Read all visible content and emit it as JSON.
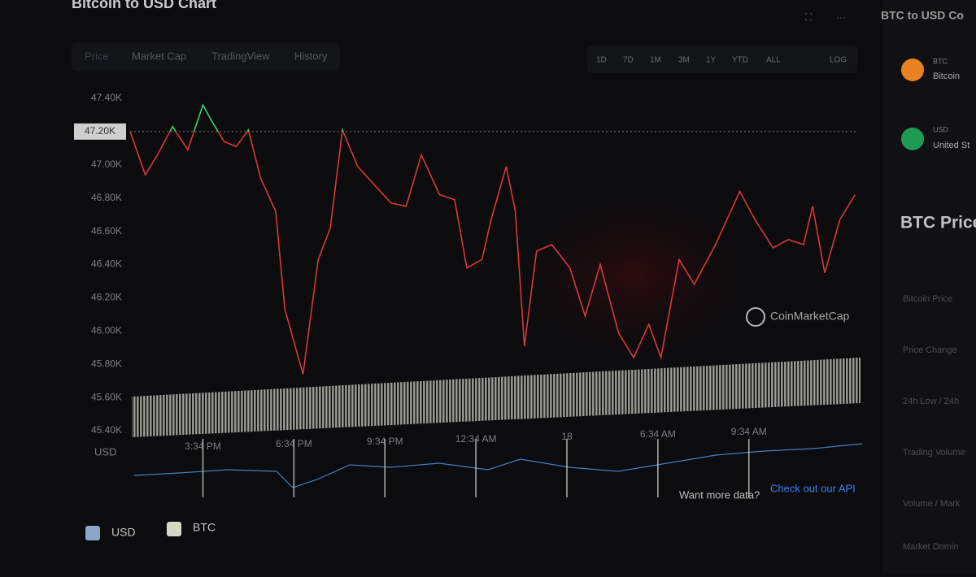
{
  "header": {
    "title": "Bitcoin to USD Chart"
  },
  "tabs": [
    "Price",
    "Market Cap",
    "TradingView",
    "History"
  ],
  "ranges": [
    "1D",
    "7D",
    "1M",
    "3M",
    "1Y",
    "YTD",
    "ALL",
    "LOG"
  ],
  "chart_data": {
    "type": "line",
    "y_label": "USD",
    "watermark": "CoinMarketCap",
    "x": [
      -2.4,
      -1.9,
      -1.5,
      -1.0,
      -0.5,
      0,
      0.3,
      0.7,
      1.1,
      1.5,
      1.9,
      2.4,
      2.7,
      3.3,
      3.8,
      4.2,
      4.6,
      5.1,
      5.6,
      6.2,
      6.7,
      7.2,
      7.8,
      8.3,
      8.7,
      9.2,
      9.5,
      10.0,
      10.3,
      10.6,
      11.0,
      11.5,
      12.1,
      12.6,
      13.1,
      13.7,
      14.2,
      14.7,
      15.1,
      15.7,
      16.2,
      16.9,
      17.7,
      18.2,
      18.8,
      19.3,
      19.8,
      20.1,
      20.5,
      21.0,
      21.5
    ],
    "series": [
      {
        "name": "BTC",
        "color": "#d9363e",
        "color_above": "#3fcf74",
        "values": [
          47200,
          46940,
          47060,
          47230,
          47090,
          47360,
          47260,
          47140,
          47110,
          47210,
          46920,
          46720,
          46130,
          45740,
          46430,
          46620,
          47210,
          46990,
          46890,
          46770,
          46750,
          47060,
          46820,
          46790,
          46380,
          46430,
          46670,
          46990,
          46720,
          45910,
          46480,
          46520,
          46380,
          46090,
          46400,
          45990,
          45840,
          46040,
          45840,
          46430,
          46280,
          46520,
          46840,
          46670,
          46500,
          46550,
          46520,
          46750,
          46350,
          46670,
          46820
        ]
      }
    ],
    "reference": {
      "value": 47200,
      "label": "47.20K"
    },
    "xlim": [
      -2.4,
      21.6
    ],
    "xticks": [
      {
        "value": 0,
        "label": "3:34 PM"
      },
      {
        "value": 3,
        "label": "6:34 PM"
      },
      {
        "value": 6,
        "label": "9:34 PM"
      },
      {
        "value": 9,
        "label": "12:34 AM"
      },
      {
        "value": 12,
        "label": "18"
      },
      {
        "value": 15,
        "label": "6:34 AM"
      },
      {
        "value": 18,
        "label": "9:34 AM"
      }
    ],
    "ylim": [
      45400,
      47400
    ],
    "yticks": [
      {
        "value": 47400,
        "label": "47.40K"
      },
      {
        "value": 47000,
        "label": "47.00K"
      },
      {
        "value": 46800,
        "label": "46.80K"
      },
      {
        "value": 46600,
        "label": "46.60K"
      },
      {
        "value": 46400,
        "label": "46.40K"
      },
      {
        "value": 46200,
        "label": "46.20K"
      },
      {
        "value": 46000,
        "label": "46.00K"
      },
      {
        "value": 45800,
        "label": "45.80K"
      },
      {
        "value": 45600,
        "label": "45.60K"
      },
      {
        "value": 45400,
        "label": "45.40K"
      }
    ],
    "legend": [
      "USD",
      "BTC"
    ]
  },
  "footer": {
    "prompt": "Want more data?",
    "link": "Check out our API"
  },
  "side": {
    "title": "BTC to USD Co",
    "coins": [
      {
        "symbol": "BTC",
        "name": "Bitcoin"
      },
      {
        "symbol": "USD",
        "name": "United St"
      }
    ],
    "heading": "BTC Price",
    "rows": [
      "Bitcoin Price",
      "Price Change",
      "24h Low / 24h",
      "Trading Volume",
      "Volume / Mark",
      "Market Domin"
    ]
  }
}
